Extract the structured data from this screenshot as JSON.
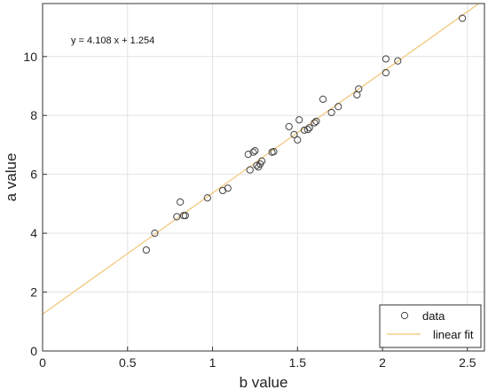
{
  "chart_data": {
    "type": "scatter",
    "title": "",
    "xlabel": "b value",
    "ylabel": "a value",
    "xlim": [
      0,
      2.6
    ],
    "ylim": [
      0,
      11.8
    ],
    "xticks": [
      0,
      0.5,
      1,
      1.5,
      2,
      2.5
    ],
    "xtick_labels": [
      "0",
      "0.5",
      "1",
      "1.5",
      "2",
      "2.5"
    ],
    "yticks": [
      0,
      2,
      4,
      6,
      8,
      10
    ],
    "ytick_labels": [
      "0",
      "2",
      "4",
      "6",
      "8",
      "10"
    ],
    "grid": true,
    "legend_position": "bottom-right",
    "annotation": "y = 4.108 x + 1.254",
    "fit": {
      "slope": 4.108,
      "intercept": 1.254
    },
    "series": [
      {
        "name": "data",
        "marker": "open-circle",
        "color": "#444444",
        "points": [
          [
            0.61,
            3.43
          ],
          [
            0.66,
            4.0
          ],
          [
            0.79,
            4.56
          ],
          [
            0.81,
            5.06
          ],
          [
            0.83,
            4.6
          ],
          [
            0.84,
            4.6
          ],
          [
            0.97,
            5.2
          ],
          [
            1.06,
            5.45
          ],
          [
            1.09,
            5.53
          ],
          [
            1.21,
            6.68
          ],
          [
            1.22,
            6.15
          ],
          [
            1.24,
            6.75
          ],
          [
            1.25,
            6.8
          ],
          [
            1.26,
            6.3
          ],
          [
            1.27,
            6.25
          ],
          [
            1.28,
            6.35
          ],
          [
            1.29,
            6.45
          ],
          [
            1.35,
            6.75
          ],
          [
            1.36,
            6.77
          ],
          [
            1.45,
            7.62
          ],
          [
            1.48,
            7.35
          ],
          [
            1.5,
            7.17
          ],
          [
            1.51,
            7.85
          ],
          [
            1.54,
            7.5
          ],
          [
            1.56,
            7.52
          ],
          [
            1.57,
            7.58
          ],
          [
            1.6,
            7.75
          ],
          [
            1.61,
            7.8
          ],
          [
            1.65,
            8.55
          ],
          [
            1.7,
            8.1
          ],
          [
            1.74,
            8.3
          ],
          [
            1.85,
            8.7
          ],
          [
            1.86,
            8.9
          ],
          [
            2.02,
            9.92
          ],
          [
            2.02,
            9.45
          ],
          [
            2.09,
            9.85
          ],
          [
            2.47,
            11.3
          ]
        ]
      },
      {
        "name": "linear fit",
        "marker": "line",
        "color": "#f2c474"
      }
    ]
  }
}
